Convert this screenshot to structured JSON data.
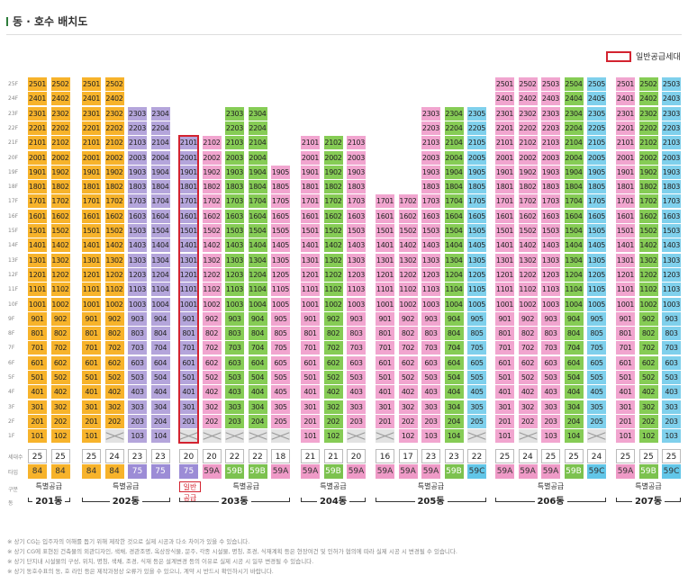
{
  "title": "동 · 호수 배치도",
  "legend_label": "일반공급세대",
  "floors": [
    "25F",
    "24F",
    "23F",
    "22F",
    "21F",
    "20F",
    "19F",
    "18F",
    "17F",
    "16F",
    "15F",
    "14F",
    "13F",
    "12F",
    "11F",
    "10F",
    "9F",
    "8F",
    "7F",
    "6F",
    "5F",
    "4F",
    "3F",
    "2F",
    "1F"
  ],
  "row_labels": {
    "households": "세대수",
    "type": "타입",
    "category": "구분",
    "building": "동"
  },
  "buildings": [
    {
      "name": "201동",
      "supply": "특별공급",
      "columns": [
        {
          "line": "01",
          "color": "orange",
          "top": 25,
          "bottom": 1,
          "x_floors": [],
          "count": "25",
          "type": "84",
          "type_color": "orange"
        },
        {
          "line": "02",
          "color": "orange",
          "top": 25,
          "bottom": 1,
          "x_floors": [],
          "count": "25",
          "type": "84",
          "type_color": "orange"
        }
      ]
    },
    {
      "name": "202동",
      "supply": "특별공급",
      "columns": [
        {
          "line": "01",
          "color": "orange",
          "top": 25,
          "bottom": 1,
          "x_floors": [],
          "count": "25",
          "type": "84",
          "type_color": "orange"
        },
        {
          "line": "02",
          "color": "orange",
          "top": 25,
          "bottom": 1,
          "x_floors": [
            1
          ],
          "count": "24",
          "type": "84",
          "type_color": "orange"
        },
        {
          "line": "03",
          "color": "purple",
          "top": 23,
          "bottom": 1,
          "x_floors": [],
          "count": "23",
          "type": "75",
          "type_color": "purple"
        },
        {
          "line": "04",
          "color": "purple",
          "top": 23,
          "bottom": 1,
          "x_floors": [],
          "count": "23",
          "type": "75",
          "type_color": "purple"
        }
      ]
    },
    {
      "name": "203동",
      "supply": "특별공급",
      "general": "일반공급",
      "columns": [
        {
          "line": "01",
          "color": "purple",
          "top": 21,
          "bottom": 1,
          "x_floors": [
            1
          ],
          "count": "20",
          "type": "75",
          "type_color": "purple"
        },
        {
          "line": "02",
          "color": "pink",
          "top": 21,
          "bottom": 1,
          "x_floors": [
            1
          ],
          "count": "20",
          "type": "59A",
          "type_color": "pink"
        },
        {
          "line": "03",
          "color": "green",
          "top": 23,
          "bottom": 1,
          "x_floors": [
            1
          ],
          "count": "22",
          "type": "59B",
          "type_color": "green"
        },
        {
          "line": "04",
          "color": "green",
          "top": 23,
          "bottom": 1,
          "x_floors": [
            1
          ],
          "count": "22",
          "type": "59B",
          "type_color": "green"
        },
        {
          "line": "05",
          "color": "pink",
          "top": 19,
          "bottom": 1,
          "x_floors": [
            1
          ],
          "count": "18",
          "type": "59A",
          "type_color": "pink"
        }
      ]
    },
    {
      "name": "204동",
      "supply": "특별공급",
      "columns": [
        {
          "line": "01",
          "color": "pink",
          "top": 21,
          "bottom": 1,
          "x_floors": [],
          "count": "21",
          "type": "59A",
          "type_color": "pink"
        },
        {
          "line": "02",
          "color": "green",
          "top": 21,
          "bottom": 1,
          "x_floors": [],
          "count": "21",
          "type": "59B",
          "type_color": "green"
        },
        {
          "line": "03",
          "color": "pink",
          "top": 21,
          "bottom": 1,
          "x_floors": [
            1
          ],
          "count": "20",
          "type": "59A",
          "type_color": "pink"
        }
      ]
    },
    {
      "name": "205동",
      "supply": "특별공급",
      "columns": [
        {
          "line": "01",
          "color": "pink",
          "top": 17,
          "bottom": 1,
          "x_floors": [
            1
          ],
          "count": "16",
          "type": "59A",
          "type_color": "pink"
        },
        {
          "line": "02",
          "color": "pink",
          "top": 17,
          "bottom": 1,
          "x_floors": [],
          "count": "17",
          "type": "59A",
          "type_color": "pink"
        },
        {
          "line": "03",
          "color": "pink",
          "top": 23,
          "bottom": 1,
          "x_floors": [],
          "count": "23",
          "type": "59A",
          "type_color": "pink"
        },
        {
          "line": "04",
          "color": "green",
          "top": 23,
          "bottom": 1,
          "x_floors": [],
          "count": "23",
          "type": "59B",
          "type_color": "green"
        },
        {
          "line": "05",
          "color": "blue",
          "top": 23,
          "bottom": 1,
          "x_floors": [
            1
          ],
          "count": "22",
          "type": "59C",
          "type_color": "blue"
        }
      ]
    },
    {
      "name": "206동",
      "supply": "특별공급",
      "columns": [
        {
          "line": "01",
          "color": "pink",
          "top": 25,
          "bottom": 1,
          "x_floors": [],
          "count": "25",
          "type": "59A",
          "type_color": "pink"
        },
        {
          "line": "02",
          "color": "pink",
          "top": 25,
          "bottom": 1,
          "x_floors": [
            1
          ],
          "count": "24",
          "type": "59A",
          "type_color": "pink"
        },
        {
          "line": "03",
          "color": "pink",
          "top": 25,
          "bottom": 1,
          "x_floors": [],
          "count": "25",
          "type": "59A",
          "type_color": "pink"
        },
        {
          "line": "04",
          "color": "green",
          "top": 25,
          "bottom": 1,
          "x_floors": [],
          "count": "25",
          "type": "59B",
          "type_color": "green"
        },
        {
          "line": "05",
          "color": "blue",
          "top": 25,
          "bottom": 1,
          "x_floors": [
            1
          ],
          "count": "24",
          "type": "59C",
          "type_color": "blue"
        }
      ]
    },
    {
      "name": "207동",
      "supply": "특별공급",
      "columns": [
        {
          "line": "01",
          "color": "pink",
          "top": 25,
          "bottom": 1,
          "x_floors": [],
          "count": "25",
          "type": "59A",
          "type_color": "pink"
        },
        {
          "line": "02",
          "color": "green",
          "top": 25,
          "bottom": 1,
          "x_floors": [],
          "count": "25",
          "type": "59B",
          "type_color": "green"
        },
        {
          "line": "03",
          "color": "blue",
          "top": 25,
          "bottom": 1,
          "x_floors": [],
          "count": "25",
          "type": "59C",
          "type_color": "blue"
        }
      ]
    }
  ],
  "notes": [
    "※ 상기 CG는 입주자의 이해를 돕기 위해 제작한 것으로 실제 시공과 다소 차이가 있을 수 있습니다.",
    "※ 상기 CG에 표현된 건축물의 외관디자인, 색채, 경관조명, 옥상장식물, 문주, 각종 시설물, 명칭, 조경, 식재계획 등은 현장여건 및 인허가 협의에 따라 실제 시공 시 변경될 수 있습니다.",
    "※ 상기 단지내 시설물의 구성, 위치, 명칭, 색채, 조경, 식재 등은 설계변경 등의 이유로 실제 시공 시 일부 변경될 수 있습니다.",
    "※ 상기 동호수표의 동, 호 라인 등은 제작과정상 오류가 있을 수 있으니, 계약 시 반드시 확인하시기 바랍니다."
  ],
  "colors": {
    "orange": "#f7b32b",
    "purple": "#b4a5db",
    "pink": "#f1a5cf",
    "green": "#86cc55",
    "blue": "#7fd0ec",
    "general_frame": "#d32330"
  }
}
